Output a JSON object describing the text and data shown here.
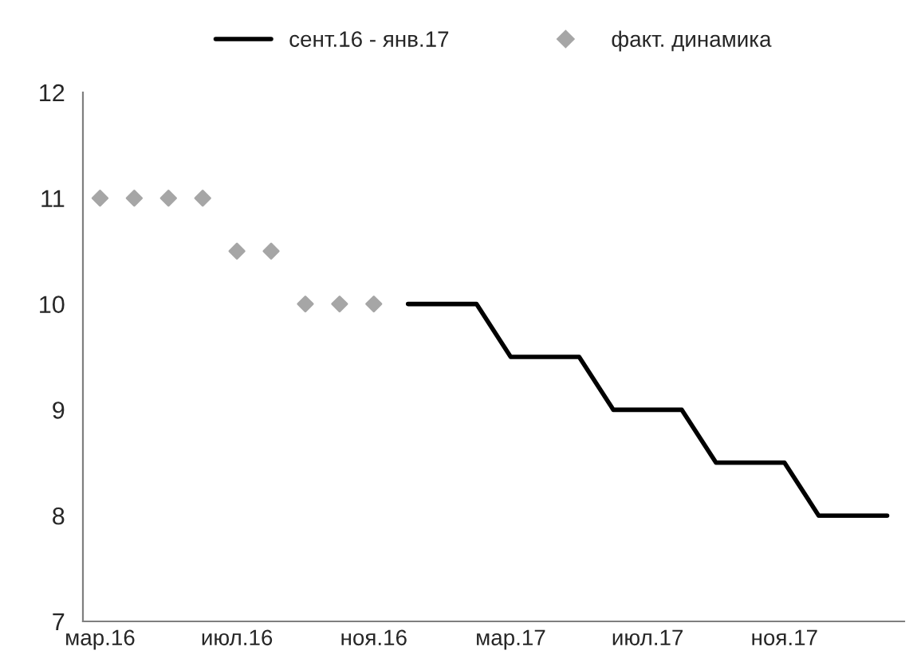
{
  "chart_data": {
    "type": "line",
    "categories": [
      "мар.16",
      null,
      null,
      null,
      "июл.16",
      null,
      null,
      null,
      "ноя.16",
      null,
      null,
      null,
      "мар.17",
      null,
      null,
      null,
      "июл.17",
      null,
      null,
      null,
      "ноя.17",
      null,
      null,
      null
    ],
    "series": [
      {
        "name": "сент.16 - янв.17",
        "color": "#000000",
        "marker": "none",
        "line_style": "solid",
        "values": [
          null,
          null,
          null,
          null,
          null,
          null,
          null,
          null,
          null,
          10,
          10,
          10,
          9.5,
          9.5,
          9.5,
          9,
          9,
          9,
          8.5,
          8.5,
          8.5,
          8,
          8,
          8
        ]
      },
      {
        "name": "факт. динамика",
        "type": "scatter",
        "color": "#a6a6a6",
        "marker": "diamond",
        "values": [
          11,
          11,
          11,
          11,
          10.5,
          10.5,
          10,
          10,
          10,
          null,
          null,
          null,
          null,
          null,
          null,
          null,
          null,
          null,
          null,
          null,
          null,
          null,
          null,
          null
        ]
      }
    ],
    "ylim": [
      7,
      12
    ],
    "yticks": [
      7,
      8,
      9,
      10,
      11,
      12
    ],
    "grid": false,
    "legend": "top"
  }
}
